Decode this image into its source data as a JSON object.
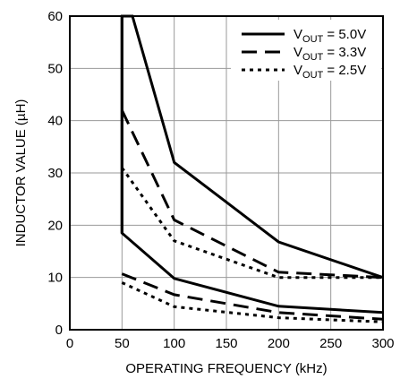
{
  "chart_data": {
    "type": "line",
    "title": "",
    "xlabel": "OPERATING FREQUENCY (kHz)",
    "ylabel": "INDUCTOR VALUE (µH)",
    "xlim": [
      0,
      300
    ],
    "ylim": [
      0,
      60
    ],
    "x_ticks": [
      "0",
      "50",
      "100",
      "150",
      "200",
      "250",
      "300"
    ],
    "y_ticks": [
      "0",
      "10",
      "20",
      "30",
      "40",
      "50",
      "60"
    ],
    "grid": true,
    "legend_position": "top-right",
    "series": [
      {
        "name": "VOUT = 5.0V",
        "legend_main": "V",
        "legend_sub": "OUT",
        "legend_rest": " = 5.0V",
        "dash": "solid",
        "upper": {
          "x": [
            50,
            50,
            60,
            100,
            200,
            300
          ],
          "y": [
            18.5,
            60,
            60,
            32,
            16.8,
            10
          ]
        },
        "lower": {
          "x": [
            50,
            50,
            100,
            200,
            300
          ],
          "y": [
            60,
            18.5,
            9.8,
            4.5,
            3.3
          ]
        }
      },
      {
        "name": "VOUT = 3.3V",
        "legend_main": "V",
        "legend_sub": "OUT",
        "legend_rest": " = 3.3V",
        "dash": "long-dash",
        "upper": {
          "x": [
            50,
            100,
            200,
            300
          ],
          "y": [
            42,
            21,
            11,
            10
          ]
        },
        "lower": {
          "x": [
            50,
            100,
            200,
            300
          ],
          "y": [
            10.7,
            6.7,
            3.3,
            2
          ]
        }
      },
      {
        "name": "VOUT = 2.5V",
        "legend_main": "V",
        "legend_sub": "OUT",
        "legend_rest": " = 2.5V",
        "dash": "short-dash",
        "upper": {
          "x": [
            50,
            100,
            200,
            300
          ],
          "y": [
            31,
            17,
            10,
            10
          ]
        },
        "lower": {
          "x": [
            50,
            100,
            200,
            300
          ],
          "y": [
            9,
            4.4,
            2.3,
            1.5
          ]
        }
      }
    ]
  }
}
